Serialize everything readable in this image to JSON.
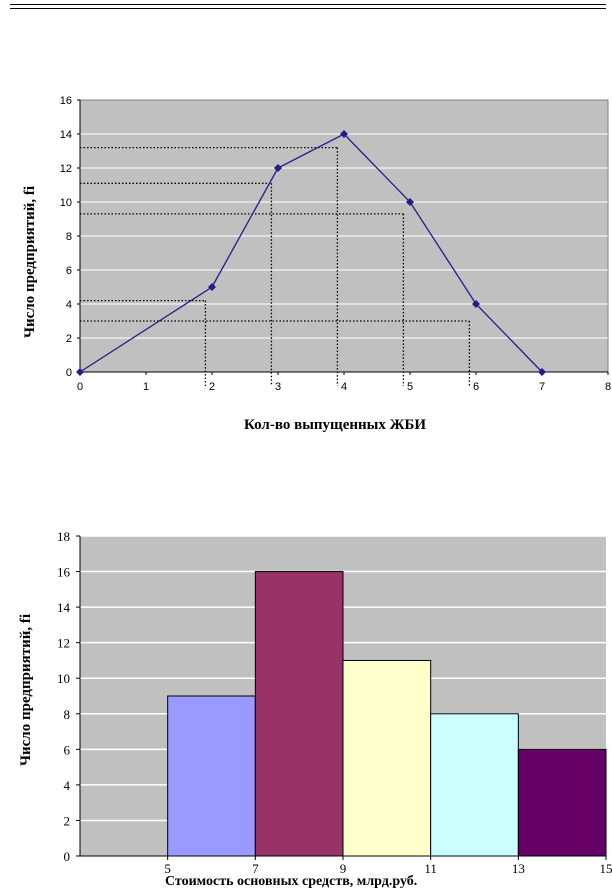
{
  "chart_data": [
    {
      "type": "line",
      "xlabel": "Кол-во выпущенных ЖБИ",
      "ylabel": "Число предприятий, fi",
      "xlim": [
        0,
        8
      ],
      "ylim": [
        0,
        16
      ],
      "xticks": [
        "0",
        "1",
        "2",
        "3",
        "4",
        "5",
        "6",
        "7",
        "8"
      ],
      "yticks": [
        "0",
        "2",
        "4",
        "6",
        "8",
        "10",
        "12",
        "14",
        "16"
      ],
      "grid": true,
      "x": [
        0,
        2,
        3,
        4,
        5,
        6,
        7
      ],
      "values": [
        0,
        5,
        12,
        14,
        10,
        4,
        0
      ],
      "series_color": "#1f1f8a",
      "plot_bg": "#c0c0c0",
      "reference_lines": [
        {
          "y": 4.2,
          "x": 1.9
        },
        {
          "y": 3.0,
          "x": 5.9
        },
        {
          "y": 11.1,
          "x": 2.9
        },
        {
          "y": 13.2,
          "x": 3.9
        },
        {
          "y": 9.3,
          "x": 4.9
        }
      ]
    },
    {
      "type": "bar",
      "xlabel": "Стоимость основных средств, млрд.руб.",
      "ylabel": "Число предприятий, fi",
      "ylim": [
        0,
        18
      ],
      "xlim": [
        3,
        15
      ],
      "xticks": [
        "5",
        "7",
        "9",
        "11",
        "13",
        "15"
      ],
      "xtick_values": [
        5,
        7,
        9,
        11,
        13,
        15
      ],
      "yticks": [
        "0",
        "2",
        "4",
        "6",
        "8",
        "10",
        "12",
        "14",
        "16",
        "18"
      ],
      "grid": true,
      "bins": [
        [
          5,
          7
        ],
        [
          7,
          9
        ],
        [
          9,
          11
        ],
        [
          11,
          13
        ],
        [
          13,
          15
        ]
      ],
      "values": [
        9,
        16,
        11,
        8,
        6
      ],
      "colors": [
        "#9999ff",
        "#993366",
        "#ffffcc",
        "#ccffff",
        "#660066"
      ],
      "plot_bg": "#c0c0c0"
    }
  ]
}
